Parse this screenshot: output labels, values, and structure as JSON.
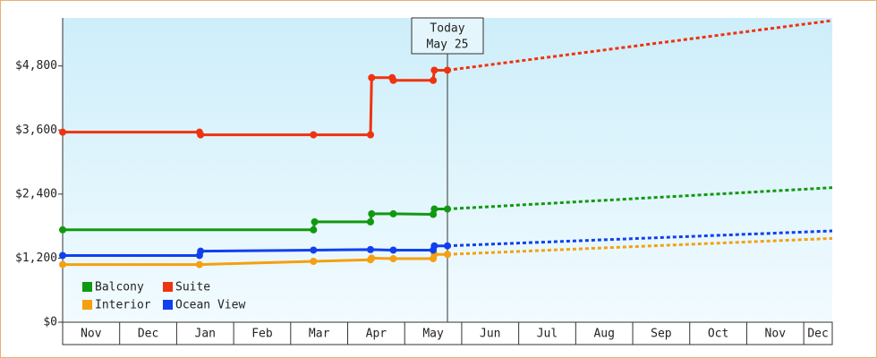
{
  "chart_data": {
    "type": "line",
    "categories": [
      "Nov",
      "Dec",
      "Jan",
      "Feb",
      "Mar",
      "Apr",
      "May",
      "Jun",
      "Jul",
      "Aug",
      "Sep",
      "Oct",
      "Nov",
      "Dec"
    ],
    "xlim": [
      0,
      13.5
    ],
    "ylim": [
      0,
      5700
    ],
    "yticks": [
      {
        "value": 0,
        "label": "$0"
      },
      {
        "value": 1200,
        "label": "$1,200"
      },
      {
        "value": 2400,
        "label": "$2,400"
      },
      {
        "value": 3600,
        "label": "$3,600"
      },
      {
        "value": 4800,
        "label": "$4,800"
      }
    ],
    "annotation": {
      "lines": [
        "Today",
        "May 25"
      ],
      "x": 6.75
    },
    "legend": "lower left",
    "series": [
      {
        "name": "Balcony",
        "color": "#119911",
        "x": [
          0,
          4.4,
          4.42,
          5.4,
          5.42,
          5.8,
          6.5,
          6.52,
          6.75
        ],
        "values": [
          1730,
          1730,
          1880,
          1880,
          2030,
          2030,
          2020,
          2120,
          2120
        ],
        "forecast_x": [
          6.75,
          13.5
        ],
        "forecast_values": [
          2120,
          2520
        ]
      },
      {
        "name": "Suite",
        "color": "#ee3311",
        "x": [
          0,
          2.4,
          2.42,
          4.4,
          5.4,
          5.42,
          5.78,
          5.8,
          6.5,
          6.52,
          6.75
        ],
        "values": [
          3560,
          3560,
          3510,
          3510,
          3510,
          4580,
          4580,
          4530,
          4530,
          4720,
          4720
        ],
        "forecast_x": [
          6.75,
          13.5
        ],
        "forecast_values": [
          4720,
          5650
        ]
      },
      {
        "name": "Interior",
        "color": "#f4a010",
        "x": [
          0,
          2.4,
          4.4,
          5.4,
          5.42,
          5.8,
          6.5,
          6.52,
          6.75
        ],
        "values": [
          1080,
          1080,
          1140,
          1170,
          1200,
          1190,
          1190,
          1270,
          1270
        ],
        "forecast_x": [
          6.75,
          13.5
        ],
        "forecast_values": [
          1270,
          1570
        ]
      },
      {
        "name": "Ocean View",
        "color": "#1040ee",
        "x": [
          0,
          2.4,
          2.42,
          4.4,
          5.4,
          5.8,
          6.5,
          6.52,
          6.75
        ],
        "values": [
          1250,
          1250,
          1330,
          1350,
          1360,
          1350,
          1350,
          1430,
          1430
        ],
        "forecast_x": [
          6.75,
          13.5
        ],
        "forecast_values": [
          1430,
          1710
        ]
      }
    ]
  }
}
